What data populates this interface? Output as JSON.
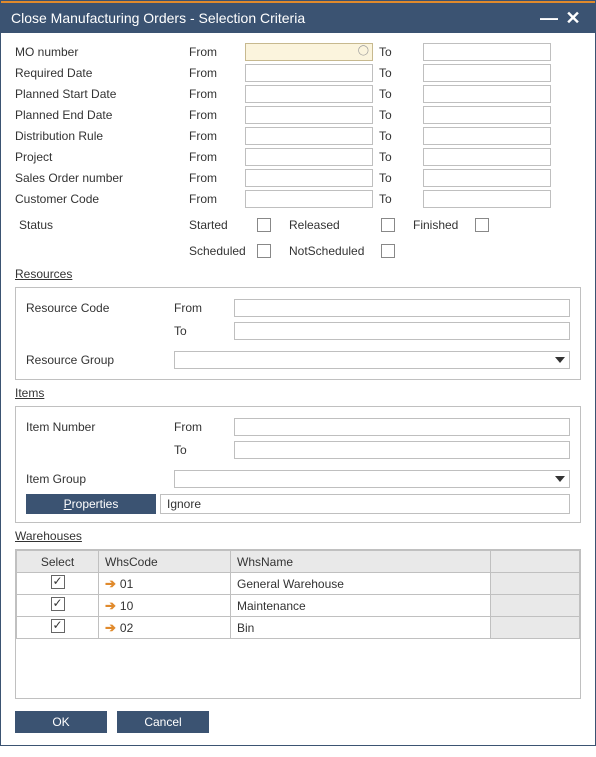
{
  "window": {
    "title": "Close Manufacturing Orders - Selection Criteria"
  },
  "filters": [
    {
      "label": "MO number",
      "from": "From",
      "to": "To",
      "from_val": "",
      "to_val": "",
      "highlight": true
    },
    {
      "label": "Required Date",
      "from": "From",
      "to": "To",
      "from_val": "",
      "to_val": ""
    },
    {
      "label": "Planned Start Date",
      "from": "From",
      "to": "To",
      "from_val": "",
      "to_val": ""
    },
    {
      "label": "Planned End Date",
      "from": "From",
      "to": "To",
      "from_val": "",
      "to_val": ""
    },
    {
      "label": "Distribution Rule",
      "from": "From",
      "to": "To",
      "from_val": "",
      "to_val": ""
    },
    {
      "label": "Project",
      "from": "From",
      "to": "To",
      "from_val": "",
      "to_val": ""
    },
    {
      "label": "Sales Order number",
      "from": "From",
      "to": "To",
      "from_val": "",
      "to_val": ""
    },
    {
      "label": "Customer Code",
      "from": "From",
      "to": "To",
      "from_val": "",
      "to_val": ""
    }
  ],
  "status": {
    "label": "Status",
    "row1": [
      {
        "label": "Started",
        "checked": false
      },
      {
        "label": "Released",
        "checked": false
      },
      {
        "label": "Finished",
        "checked": false
      }
    ],
    "row2": [
      {
        "label": "Scheduled",
        "checked": false
      },
      {
        "label": "NotScheduled",
        "checked": false
      }
    ]
  },
  "sections": {
    "resources": {
      "title": "Resources",
      "code_label": "Resource Code",
      "from_label": "From",
      "to_label": "To",
      "group_label": "Resource Group",
      "from_val": "",
      "to_val": "",
      "group_val": ""
    },
    "items": {
      "title": "Items",
      "num_label": "Item Number",
      "from_label": "From",
      "to_label": "To",
      "group_label": "Item Group",
      "from_val": "",
      "to_val": "",
      "group_val": "",
      "properties_btn": "Properties",
      "properties_val": "Ignore"
    },
    "warehouses": {
      "title": "Warehouses",
      "headers": {
        "select": "Select",
        "code": "WhsCode",
        "name": "WhsName"
      },
      "rows": [
        {
          "checked": true,
          "code": "01",
          "name": "General Warehouse"
        },
        {
          "checked": true,
          "code": "10",
          "name": "Maintenance"
        },
        {
          "checked": true,
          "code": "02",
          "name": "Bin"
        }
      ]
    }
  },
  "buttons": {
    "ok": "OK",
    "cancel": "Cancel"
  },
  "colors": {
    "titlebar": "#3b5372",
    "accent": "#e08a2c",
    "border": "#c0c0c0",
    "header_bg": "#e9e9e9"
  }
}
